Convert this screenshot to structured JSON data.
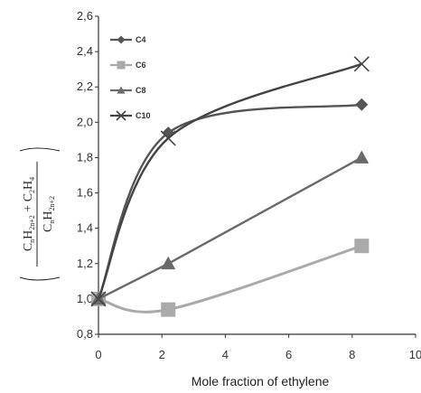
{
  "chart_data": {
    "type": "line",
    "xlabel": "Mole fraction of ethylene",
    "ylabel": {
      "numerator": [
        {
          "t": "C"
        },
        {
          "t": "n",
          "sub": true
        },
        {
          "t": "H"
        },
        {
          "t": "2n+2",
          "sub": true
        },
        {
          "t": " + C"
        },
        {
          "t": "2",
          "sub": true
        },
        {
          "t": "H"
        },
        {
          "t": "4",
          "sub": true
        }
      ],
      "denominator": [
        {
          "t": "C"
        },
        {
          "t": "n",
          "sub": true
        },
        {
          "t": "H"
        },
        {
          "t": "2n+2",
          "sub": true
        }
      ]
    },
    "xlim": [
      0,
      10
    ],
    "ylim": [
      0.8,
      2.6
    ],
    "xticks": [
      "0",
      "2",
      "4",
      "6",
      "8",
      "10"
    ],
    "yticks": [
      "0,8",
      "1,0",
      "1,2",
      "1,4",
      "1,6",
      "1,8",
      "2,0",
      "2,2",
      "2,4",
      "2,6"
    ],
    "grid": false,
    "legend_position": "top-left",
    "series": [
      {
        "name": "C4",
        "marker": "diamond",
        "color": "#555555",
        "smooth": true,
        "x": [
          0,
          2.2,
          8.3
        ],
        "y": [
          1.0,
          1.94,
          2.1
        ]
      },
      {
        "name": "C6",
        "marker": "square",
        "color": "#aaaaaa",
        "smooth": true,
        "x": [
          0,
          2.2,
          8.3
        ],
        "y": [
          1.0,
          0.94,
          1.3
        ]
      },
      {
        "name": "C8",
        "marker": "triangle",
        "color": "#6a6a6a",
        "smooth": false,
        "x": [
          0,
          2.2,
          8.3
        ],
        "y": [
          1.0,
          1.2,
          1.8
        ]
      },
      {
        "name": "C10",
        "marker": "x",
        "color": "#444444",
        "smooth": true,
        "x": [
          0,
          2.2,
          8.3
        ],
        "y": [
          1.0,
          1.91,
          2.33
        ]
      }
    ]
  }
}
